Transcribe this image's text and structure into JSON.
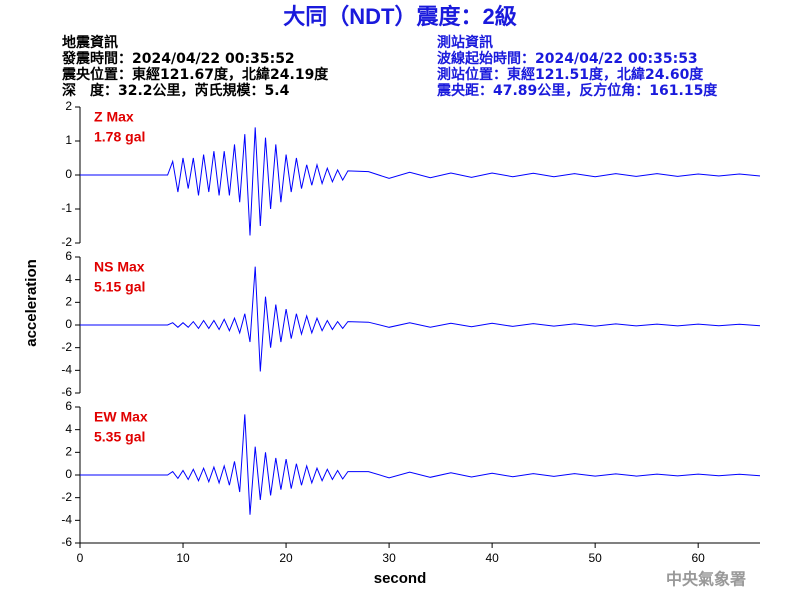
{
  "header": {
    "title": "大同（NDT）震度：2級",
    "left": [
      "地震資訊",
      "發震時間：2024/04/22 00:35:52",
      "震央位置：東經121.67度，北緯24.19度",
      "深　度：32.2公里，芮氏規模：5.4"
    ],
    "right": [
      "測站資訊",
      "波線起始時間：2024/04/22 00:35:53",
      "測站位置：東經121.51度，北緯24.60度",
      "震央距：47.89公里，反方位角：161.15度"
    ]
  },
  "watermark": "中央氣象署",
  "xlabel": "second",
  "ylabel": "acceleration",
  "chart_data": [
    {
      "type": "line",
      "annotation": [
        "Z Max",
        "1.78 gal"
      ],
      "xlim": [
        0,
        66
      ],
      "ylim": [
        -2,
        2
      ],
      "yticks": [
        -2,
        -1,
        0,
        1,
        2
      ],
      "x": [
        0,
        8.5,
        9,
        9.5,
        10,
        10.5,
        11,
        11.5,
        12,
        12.5,
        13,
        13.5,
        14,
        14.5,
        15,
        15.5,
        16,
        16.5,
        17,
        17.5,
        18,
        18.5,
        19,
        19.5,
        20,
        20.5,
        21,
        21.5,
        22,
        22.5,
        23,
        23.5,
        24,
        24.5,
        25,
        25.5,
        26,
        28,
        30,
        32,
        34,
        36,
        38,
        40,
        42,
        44,
        46,
        48,
        50,
        52,
        54,
        56,
        58,
        60,
        62,
        64,
        66
      ],
      "series": [
        {
          "color": "#0000ff",
          "values": [
            0,
            0,
            0.4,
            -0.5,
            0.5,
            -0.4,
            0.5,
            -0.6,
            0.6,
            -0.5,
            0.7,
            -0.6,
            0.7,
            -0.6,
            0.9,
            -0.8,
            1.2,
            -1.78,
            1.4,
            -1.5,
            1.1,
            -1.0,
            0.9,
            -0.8,
            0.6,
            -0.5,
            0.5,
            -0.4,
            0.3,
            -0.3,
            0.3,
            -0.25,
            0.2,
            -0.2,
            0.15,
            -0.15,
            0.12,
            0.1,
            -0.1,
            0.08,
            -0.08,
            0.06,
            -0.07,
            0.06,
            -0.05,
            0.05,
            -0.05,
            0.04,
            -0.05,
            0.04,
            -0.04,
            0.04,
            -0.04,
            0.03,
            -0.03,
            0.03,
            -0.03
          ]
        }
      ]
    },
    {
      "type": "line",
      "annotation": [
        "NS Max",
        "5.15 gal"
      ],
      "xlim": [
        0,
        66
      ],
      "ylim": [
        -6,
        6
      ],
      "yticks": [
        -6,
        -4,
        -2,
        0,
        2,
        4,
        6
      ],
      "x": [
        0,
        8.5,
        9,
        9.5,
        10,
        10.5,
        11,
        11.5,
        12,
        12.5,
        13,
        13.5,
        14,
        14.5,
        15,
        15.5,
        16,
        16.5,
        17,
        17.5,
        18,
        18.5,
        19,
        19.5,
        20,
        20.5,
        21,
        21.5,
        22,
        22.5,
        23,
        23.5,
        24,
        24.5,
        25,
        25.5,
        26,
        28,
        30,
        32,
        34,
        36,
        38,
        40,
        42,
        44,
        46,
        48,
        50,
        52,
        54,
        56,
        58,
        60,
        62,
        64,
        66
      ],
      "series": [
        {
          "color": "#0000ff",
          "values": [
            0,
            0,
            0.2,
            -0.2,
            0.2,
            -0.2,
            0.3,
            -0.3,
            0.4,
            -0.3,
            0.4,
            -0.4,
            0.5,
            -0.5,
            0.6,
            -0.7,
            1.0,
            -1.5,
            5.15,
            -4.1,
            2.5,
            -2.0,
            1.8,
            -1.5,
            1.4,
            -1.2,
            1.0,
            -0.8,
            0.8,
            -0.7,
            0.6,
            -0.5,
            0.4,
            -0.4,
            0.3,
            -0.3,
            0.3,
            0.25,
            -0.2,
            0.2,
            -0.2,
            0.15,
            -0.15,
            0.15,
            -0.12,
            0.12,
            -0.1,
            0.1,
            -0.1,
            0.1,
            -0.08,
            0.08,
            -0.08,
            0.08,
            -0.06,
            0.06,
            -0.06
          ]
        }
      ]
    },
    {
      "type": "line",
      "annotation": [
        "EW Max",
        "5.35 gal"
      ],
      "xlim": [
        0,
        66
      ],
      "ylim": [
        -6,
        6
      ],
      "yticks": [
        -6,
        -4,
        -2,
        0,
        2,
        4,
        6
      ],
      "xticks": [
        0,
        10,
        20,
        30,
        40,
        50,
        60
      ],
      "x": [
        0,
        8.5,
        9,
        9.5,
        10,
        10.5,
        11,
        11.5,
        12,
        12.5,
        13,
        13.5,
        14,
        14.5,
        15,
        15.5,
        16,
        16.5,
        17,
        17.5,
        18,
        18.5,
        19,
        19.5,
        20,
        20.5,
        21,
        21.5,
        22,
        22.5,
        23,
        23.5,
        24,
        24.5,
        25,
        25.5,
        26,
        28,
        30,
        32,
        34,
        36,
        38,
        40,
        42,
        44,
        46,
        48,
        50,
        52,
        54,
        56,
        58,
        60,
        62,
        64,
        66
      ],
      "series": [
        {
          "color": "#0000ff",
          "values": [
            0,
            0,
            0.3,
            -0.3,
            0.4,
            -0.4,
            0.5,
            -0.5,
            0.6,
            -0.6,
            0.7,
            -0.7,
            0.8,
            -0.9,
            1.2,
            -1.5,
            5.35,
            -3.5,
            2.5,
            -2.2,
            2.0,
            -1.8,
            1.5,
            -1.3,
            1.4,
            -1.2,
            1.0,
            -0.9,
            0.8,
            -0.7,
            0.6,
            -0.5,
            0.5,
            -0.4,
            0.4,
            -0.35,
            0.3,
            0.3,
            -0.25,
            0.25,
            -0.2,
            0.2,
            -0.18,
            0.15,
            -0.15,
            0.12,
            -0.12,
            0.12,
            -0.1,
            0.1,
            -0.1,
            0.08,
            -0.08,
            0.08,
            -0.06,
            0.06,
            -0.06
          ]
        }
      ]
    }
  ]
}
